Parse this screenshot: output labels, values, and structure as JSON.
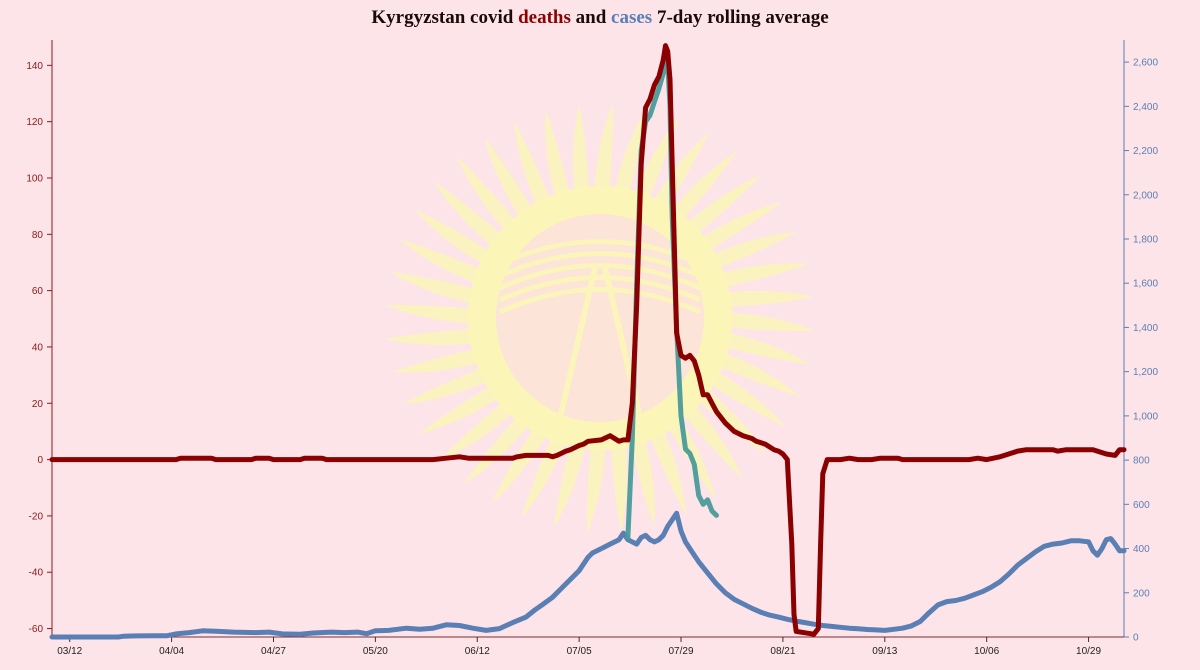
{
  "title": {
    "prefix": "Kyrgyzstan covid ",
    "deaths_word": "deaths",
    "middle": " and ",
    "cases_word": "cases",
    "suffix": " 7-day rolling average"
  },
  "colors": {
    "background": "#fde4e8",
    "deaths": "#8b0000",
    "cases": "#5a7fb5",
    "cases_transition": "#4a9a9a",
    "flag_sun": "#fbf6b8",
    "left_axis": "#8b1a1a",
    "right_axis": "#5a7fb5"
  },
  "watermark": "kyrgyzstan-flag-sun-icon",
  "chart_data": {
    "type": "line",
    "title": "Kyrgyzstan covid deaths and cases 7-day rolling average",
    "x_ticks": [
      "03/12",
      "04/04",
      "04/27",
      "05/20",
      "06/12",
      "07/05",
      "07/29",
      "08/21",
      "09/13",
      "10/06",
      "10/29"
    ],
    "x_tick_days": [
      3,
      26,
      49,
      72,
      95,
      118,
      141,
      164,
      187,
      210,
      233
    ],
    "x_range_days": [
      -1,
      241
    ],
    "y_left": {
      "label": "deaths",
      "ylim": [
        -63,
        149
      ],
      "ticks": [
        140,
        120,
        100,
        80,
        60,
        40,
        20,
        0,
        -20,
        -40,
        -60
      ]
    },
    "y_right": {
      "label": "cases",
      "ylim": [
        0,
        2700
      ],
      "ticks": [
        2600,
        2400,
        2200,
        2000,
        1800,
        1600,
        1400,
        1200,
        1000,
        800,
        600,
        400,
        200,
        0
      ]
    },
    "series": [
      {
        "name": "deaths",
        "axis": "left",
        "points": [
          [
            -1,
            0
          ],
          [
            27,
            0
          ],
          [
            28,
            0.5
          ],
          [
            35,
            0.5
          ],
          [
            36,
            0
          ],
          [
            44,
            0
          ],
          [
            45,
            0.5
          ],
          [
            48,
            0.5
          ],
          [
            49,
            0
          ],
          [
            55,
            0
          ],
          [
            56,
            0.5
          ],
          [
            60,
            0.5
          ],
          [
            61,
            0
          ],
          [
            85,
            0
          ],
          [
            88,
            0.5
          ],
          [
            91,
            1
          ],
          [
            93,
            0.5
          ],
          [
            103,
            0.5
          ],
          [
            104,
            1
          ],
          [
            106,
            1.5
          ],
          [
            111,
            1.5
          ],
          [
            112,
            1
          ],
          [
            113,
            1.5
          ],
          [
            115,
            3
          ],
          [
            116,
            3.5
          ],
          [
            118,
            5
          ],
          [
            119,
            5.5
          ],
          [
            120,
            6.5
          ],
          [
            123,
            7
          ],
          [
            125,
            8.5
          ],
          [
            127,
            6.5
          ],
          [
            128,
            7
          ],
          [
            129,
            7
          ],
          [
            130,
            20
          ],
          [
            131,
            55
          ],
          [
            132,
            105
          ],
          [
            133,
            125
          ],
          [
            134,
            128
          ],
          [
            135,
            133
          ],
          [
            136,
            136
          ],
          [
            137,
            142
          ],
          [
            137.5,
            147
          ],
          [
            138,
            145
          ],
          [
            138.5,
            135
          ],
          [
            139,
            105
          ],
          [
            139.5,
            75
          ],
          [
            140,
            45
          ],
          [
            141,
            37
          ],
          [
            142,
            36
          ],
          [
            143,
            37
          ],
          [
            144,
            35
          ],
          [
            145,
            30
          ],
          [
            146,
            23
          ],
          [
            147,
            23
          ],
          [
            148,
            20
          ],
          [
            149,
            17
          ],
          [
            150,
            15
          ],
          [
            151,
            13
          ],
          [
            152,
            11.5
          ],
          [
            153,
            10
          ],
          [
            155,
            8.5
          ],
          [
            157,
            7.5
          ],
          [
            158,
            6.5
          ],
          [
            160,
            5.5
          ],
          [
            162,
            3.5
          ],
          [
            163,
            3
          ],
          [
            164,
            2
          ],
          [
            165,
            0
          ],
          [
            166,
            -30
          ],
          [
            166.5,
            -55
          ],
          [
            167,
            -61
          ],
          [
            169,
            -61.5
          ],
          [
            171,
            -62
          ],
          [
            172,
            -60
          ],
          [
            172.5,
            -30
          ],
          [
            173,
            -5
          ],
          [
            174,
            0
          ],
          [
            177,
            0
          ],
          [
            179,
            0.5
          ],
          [
            181,
            0
          ],
          [
            184,
            0
          ],
          [
            186,
            0.5
          ],
          [
            190,
            0.5
          ],
          [
            191,
            0
          ],
          [
            206,
            0
          ],
          [
            208,
            0.5
          ],
          [
            210,
            0
          ],
          [
            213,
            1
          ],
          [
            214,
            1.5
          ],
          [
            217,
            3
          ],
          [
            219,
            3.5
          ],
          [
            225,
            3.5
          ],
          [
            226,
            3
          ],
          [
            228,
            3.5
          ],
          [
            234,
            3.5
          ],
          [
            237,
            2
          ],
          [
            239,
            1.5
          ],
          [
            240,
            3.5
          ],
          [
            241,
            3.5
          ]
        ]
      },
      {
        "name": "cases",
        "axis": "right",
        "points": [
          [
            -1,
            0
          ],
          [
            14,
            0
          ],
          [
            15,
            3
          ],
          [
            18,
            5
          ],
          [
            22,
            6
          ],
          [
            25,
            6
          ],
          [
            27,
            14
          ],
          [
            30,
            20
          ],
          [
            33,
            28
          ],
          [
            36,
            26
          ],
          [
            40,
            22
          ],
          [
            45,
            20
          ],
          [
            48,
            22
          ],
          [
            51,
            14
          ],
          [
            55,
            12
          ],
          [
            58,
            18
          ],
          [
            62,
            22
          ],
          [
            65,
            20
          ],
          [
            68,
            22
          ],
          [
            70,
            15
          ],
          [
            72,
            28
          ],
          [
            75,
            30
          ],
          [
            79,
            40
          ],
          [
            82,
            35
          ],
          [
            85,
            40
          ],
          [
            88,
            55
          ],
          [
            91,
            52
          ],
          [
            94,
            40
          ],
          [
            97,
            30
          ],
          [
            100,
            38
          ],
          [
            103,
            65
          ],
          [
            106,
            90
          ],
          [
            108,
            122
          ],
          [
            110,
            150
          ],
          [
            112,
            180
          ],
          [
            114,
            220
          ],
          [
            116,
            260
          ],
          [
            118,
            300
          ],
          [
            120,
            360
          ],
          [
            121,
            380
          ],
          [
            123,
            400
          ],
          [
            125,
            420
          ],
          [
            127,
            440
          ],
          [
            128,
            470
          ],
          [
            129,
            440
          ],
          [
            131,
            420
          ],
          [
            132,
            450
          ],
          [
            133,
            460
          ],
          [
            134,
            440
          ],
          [
            135,
            430
          ],
          [
            136,
            440
          ],
          [
            137,
            460
          ],
          [
            138,
            500
          ],
          [
            139,
            530
          ],
          [
            140,
            560
          ],
          [
            141,
            480
          ],
          [
            142,
            430
          ],
          [
            143,
            400
          ],
          [
            144,
            370
          ],
          [
            145,
            340
          ],
          [
            147,
            290
          ],
          [
            149,
            240
          ],
          [
            151,
            200
          ],
          [
            153,
            170
          ],
          [
            155,
            150
          ],
          [
            157,
            130
          ],
          [
            159,
            112
          ],
          [
            161,
            99
          ],
          [
            163,
            90
          ],
          [
            165,
            80
          ],
          [
            167,
            72
          ],
          [
            169,
            65
          ],
          [
            171,
            58
          ],
          [
            173,
            52
          ],
          [
            175,
            48
          ],
          [
            177,
            44
          ],
          [
            179,
            40
          ],
          [
            181,
            37
          ],
          [
            183,
            34
          ],
          [
            185,
            32
          ],
          [
            187,
            30
          ],
          [
            189,
            35
          ],
          [
            191,
            40
          ],
          [
            193,
            50
          ],
          [
            195,
            70
          ],
          [
            197,
            110
          ],
          [
            199,
            145
          ],
          [
            201,
            160
          ],
          [
            203,
            165
          ],
          [
            205,
            175
          ],
          [
            207,
            190
          ],
          [
            209,
            205
          ],
          [
            211,
            225
          ],
          [
            213,
            250
          ],
          [
            215,
            285
          ],
          [
            217,
            325
          ],
          [
            219,
            355
          ],
          [
            221,
            385
          ],
          [
            223,
            410
          ],
          [
            225,
            420
          ],
          [
            227,
            425
          ],
          [
            229,
            435
          ],
          [
            231,
            435
          ],
          [
            233,
            430
          ],
          [
            234,
            390
          ],
          [
            235,
            370
          ],
          [
            236,
            400
          ],
          [
            237,
            440
          ],
          [
            238,
            445
          ],
          [
            239,
            420
          ],
          [
            240,
            390
          ],
          [
            241,
            390
          ]
        ],
        "spike": [
          [
            129,
            450
          ],
          [
            130,
            900
          ],
          [
            131,
            1600
          ],
          [
            132,
            2200
          ],
          [
            133,
            2330
          ],
          [
            134,
            2360
          ],
          [
            135,
            2420
          ],
          [
            136,
            2480
          ],
          [
            137,
            2550
          ],
          [
            138,
            2600
          ],
          [
            138.5,
            2400
          ],
          [
            139,
            1900
          ],
          [
            140,
            1400
          ],
          [
            141,
            1000
          ],
          [
            142,
            850
          ],
          [
            143,
            830
          ],
          [
            144,
            780
          ],
          [
            145,
            640
          ],
          [
            146,
            600
          ],
          [
            147,
            620
          ],
          [
            148,
            570
          ],
          [
            149,
            550
          ]
        ]
      }
    ]
  }
}
